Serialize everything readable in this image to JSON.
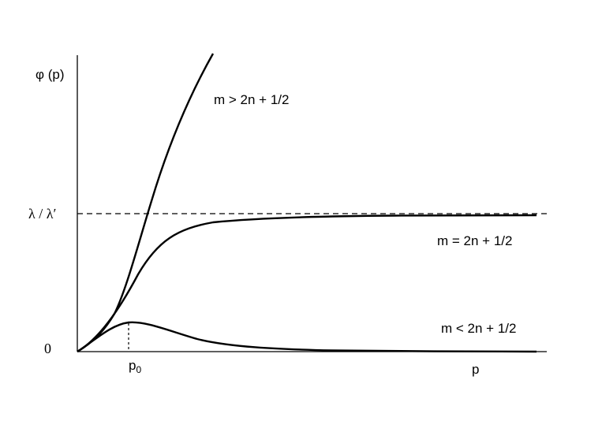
{
  "figure": {
    "y_axis_label": "φ (p)",
    "x_axis_label": "p",
    "y_tick_asymptote": "λ / λ′",
    "y_tick_zero": "0",
    "x_tick_peak": "p",
    "x_tick_peak_sub": "0",
    "curve_labels": {
      "above": "m > 2n + 1/2",
      "equal": "m = 2n + 1/2",
      "below": "m < 2n + 1/2"
    },
    "colors": {
      "stroke": "#000000",
      "background": "#ffffff"
    }
  }
}
